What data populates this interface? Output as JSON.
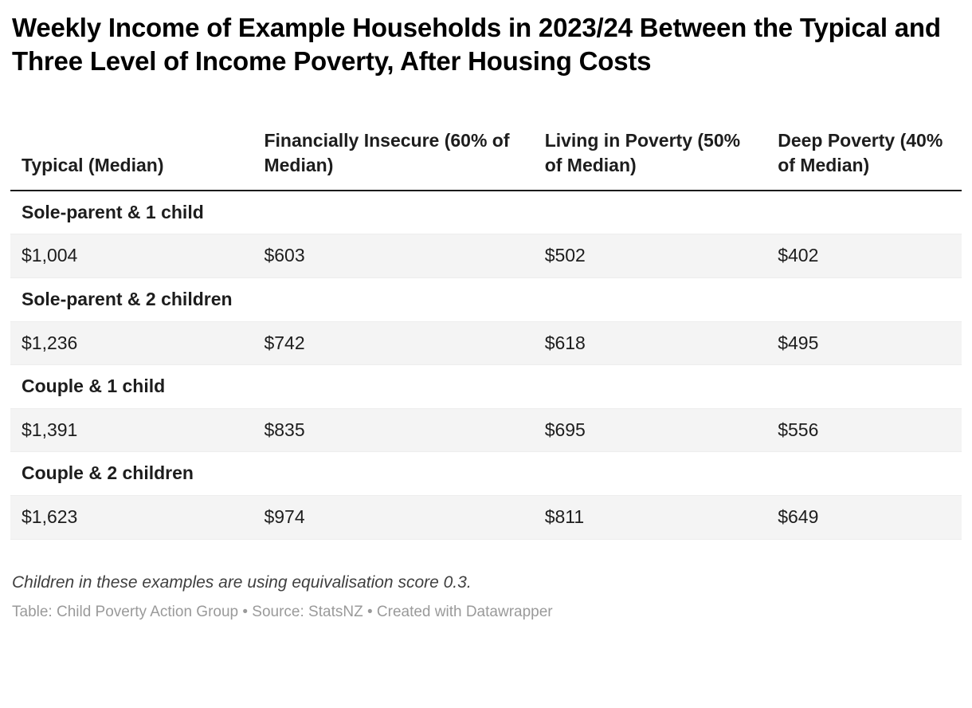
{
  "title": "Weekly Income of Example Households in 2023/24 Between the Typical and Three Level of Income Poverty, After Housing Costs",
  "chart_data": {
    "type": "table",
    "title": "Weekly Income of Example Households in 2023/24 Between the Typical and Three Level of Income Poverty, After Housing Costs",
    "columns": [
      "Typical (Median)",
      "Financially Insecure (60% of Median)",
      "Living in Poverty (50% of Median)",
      "Deep Poverty (40% of Median)"
    ],
    "groups": [
      {
        "label": "Sole-parent & 1 child",
        "values": [
          "$1,004",
          "$603",
          "$502",
          "$402"
        ]
      },
      {
        "label": "Sole-parent & 2 children",
        "values": [
          "$1,236",
          "$742",
          "$618",
          "$495"
        ]
      },
      {
        "label": "Couple & 1 child",
        "values": [
          "$1,391",
          "$835",
          "$695",
          "$556"
        ]
      },
      {
        "label": "Couple & 2 children",
        "values": [
          "$1,623",
          "$974",
          "$811",
          "$649"
        ]
      }
    ],
    "footnote": "Children in these examples are using equivalisation score 0.3.",
    "attribution": "Table: Child Poverty Action Group  • Source: StatsNZ • Created with Datawrapper",
    "layout": {
      "grid": "row-separators",
      "header_rule": true,
      "zebra_data_rows": true
    }
  },
  "colors": {
    "title_text": "#000000",
    "body_text": "#1d1d1d",
    "data_row_bg": "#f4f4f4",
    "header_rule": "#1a1a1a",
    "footnote_text": "#3f3f3f",
    "attribution_text": "#9a9a9a"
  }
}
